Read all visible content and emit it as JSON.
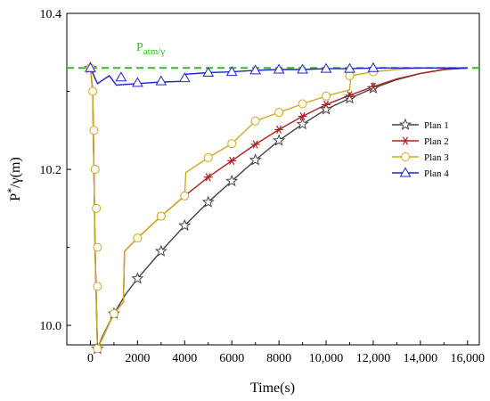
{
  "chart_data": {
    "type": "line",
    "title": "",
    "xlabel": "Time(s)",
    "ylabel": "P*/γ(m)",
    "xlim": [
      -1000,
      16500
    ],
    "ylim": [
      9.975,
      10.4
    ],
    "x_ticks": [
      {
        "value": 0,
        "label": "0"
      },
      {
        "value": 2000,
        "label": "2000"
      },
      {
        "value": 4000,
        "label": "4000"
      },
      {
        "value": 6000,
        "label": "6000"
      },
      {
        "value": 8000,
        "label": "8000"
      },
      {
        "value": 10000,
        "label": "10,000"
      },
      {
        "value": 12000,
        "label": "12,000"
      },
      {
        "value": 14000,
        "label": "14,000"
      },
      {
        "value": 16000,
        "label": "16,000"
      }
    ],
    "y_ticks": [
      {
        "value": 10.0,
        "label": "10.0"
      },
      {
        "value": 10.2,
        "label": "10.2"
      },
      {
        "value": 10.4,
        "label": "10.4"
      }
    ],
    "grid": false,
    "legend_position": "right",
    "reference_line": {
      "y": 10.33,
      "label": "P",
      "label_sub": "atm/γ",
      "color": "#33bb22"
    },
    "series": [
      {
        "name": "Plan 1",
        "color": "#444444",
        "marker": "star",
        "line": [
          [
            0,
            10.33
          ],
          [
            100,
            10.3
          ],
          [
            200,
            10.1
          ],
          [
            300,
            9.97
          ],
          [
            500,
            9.985
          ],
          [
            1000,
            10.015
          ],
          [
            1500,
            10.04
          ],
          [
            2000,
            10.06
          ],
          [
            3000,
            10.095
          ],
          [
            4000,
            10.128
          ],
          [
            5000,
            10.158
          ],
          [
            6000,
            10.185
          ],
          [
            7000,
            10.212
          ],
          [
            8000,
            10.237
          ],
          [
            9000,
            10.258
          ],
          [
            10000,
            10.277
          ],
          [
            11000,
            10.291
          ],
          [
            12000,
            10.304
          ],
          [
            13000,
            10.315
          ],
          [
            14000,
            10.323
          ],
          [
            15000,
            10.328
          ],
          [
            16000,
            10.33
          ]
        ],
        "markers": [
          [
            0,
            10.33
          ],
          [
            300,
            9.97
          ],
          [
            1000,
            10.015
          ],
          [
            2000,
            10.06
          ],
          [
            3000,
            10.095
          ],
          [
            4000,
            10.128
          ],
          [
            5000,
            10.158
          ],
          [
            6000,
            10.185
          ],
          [
            7000,
            10.212
          ],
          [
            8000,
            10.237
          ],
          [
            9000,
            10.258
          ],
          [
            10000,
            10.277
          ],
          [
            11000,
            10.291
          ],
          [
            12000,
            10.304
          ]
        ]
      },
      {
        "name": "Plan 2",
        "color": "#aa2222",
        "marker": "asterisk",
        "line": [
          [
            0,
            10.33
          ],
          [
            100,
            10.3
          ],
          [
            200,
            10.1
          ],
          [
            300,
            9.97
          ],
          [
            1000,
            10.015
          ],
          [
            1400,
            10.03
          ],
          [
            1450,
            10.095
          ],
          [
            2000,
            10.112
          ],
          [
            3000,
            10.14
          ],
          [
            4000,
            10.166
          ],
          [
            5000,
            10.19
          ],
          [
            6000,
            10.211
          ],
          [
            7000,
            10.232
          ],
          [
            8000,
            10.251
          ],
          [
            9000,
            10.268
          ],
          [
            10000,
            10.283
          ],
          [
            11000,
            10.295
          ],
          [
            12000,
            10.306
          ],
          [
            13000,
            10.316
          ],
          [
            14000,
            10.323
          ],
          [
            15000,
            10.328
          ],
          [
            16000,
            10.33
          ]
        ],
        "markers": [
          [
            0,
            10.33
          ],
          [
            300,
            9.97
          ],
          [
            1000,
            10.015
          ],
          [
            2000,
            10.112
          ],
          [
            3000,
            10.14
          ],
          [
            4000,
            10.166
          ],
          [
            5000,
            10.19
          ],
          [
            6000,
            10.211
          ],
          [
            7000,
            10.232
          ],
          [
            8000,
            10.251
          ],
          [
            9000,
            10.268
          ],
          [
            10000,
            10.283
          ],
          [
            11000,
            10.295
          ],
          [
            12000,
            10.306
          ]
        ]
      },
      {
        "name": "Plan 3",
        "color": "#ccaa22",
        "marker": "circle",
        "line": [
          [
            0,
            10.33
          ],
          [
            100,
            10.3
          ],
          [
            200,
            10.1
          ],
          [
            300,
            9.97
          ],
          [
            1000,
            10.015
          ],
          [
            1400,
            10.03
          ],
          [
            1450,
            10.095
          ],
          [
            2000,
            10.112
          ],
          [
            3000,
            10.14
          ],
          [
            4000,
            10.166
          ],
          [
            4050,
            10.196
          ],
          [
            5000,
            10.215
          ],
          [
            6000,
            10.233
          ],
          [
            7000,
            10.262
          ],
          [
            8000,
            10.273
          ],
          [
            9000,
            10.284
          ],
          [
            10000,
            10.294
          ],
          [
            11000,
            10.302
          ],
          [
            11050,
            10.32
          ],
          [
            12000,
            10.325
          ],
          [
            13000,
            10.328
          ],
          [
            14000,
            10.33
          ],
          [
            16000,
            10.33
          ]
        ],
        "markers": [
          [
            0,
            10.33
          ],
          [
            100,
            10.3
          ],
          [
            150,
            10.25
          ],
          [
            200,
            10.2
          ],
          [
            250,
            10.15
          ],
          [
            300,
            10.1
          ],
          [
            300,
            10.05
          ],
          [
            300,
            9.97
          ],
          [
            1000,
            10.015
          ],
          [
            2000,
            10.112
          ],
          [
            3000,
            10.14
          ],
          [
            4000,
            10.166
          ],
          [
            5000,
            10.215
          ],
          [
            6000,
            10.233
          ],
          [
            7000,
            10.262
          ],
          [
            8000,
            10.273
          ],
          [
            9000,
            10.284
          ],
          [
            10000,
            10.294
          ],
          [
            11000,
            10.32
          ],
          [
            12000,
            10.325
          ]
        ]
      },
      {
        "name": "Plan 4",
        "color": "#2222cc",
        "marker": "triangle",
        "line": [
          [
            0,
            10.33
          ],
          [
            300,
            10.31
          ],
          [
            800,
            10.32
          ],
          [
            1100,
            10.308
          ],
          [
            2000,
            10.31
          ],
          [
            3000,
            10.312
          ],
          [
            4000,
            10.313
          ],
          [
            4050,
            10.322
          ],
          [
            5000,
            10.324
          ],
          [
            6000,
            10.325
          ],
          [
            7000,
            10.327
          ],
          [
            8000,
            10.328
          ],
          [
            9000,
            10.328
          ],
          [
            10000,
            10.329
          ],
          [
            11000,
            10.329
          ],
          [
            12000,
            10.33
          ],
          [
            16000,
            10.33
          ]
        ],
        "markers": [
          [
            0,
            10.33
          ],
          [
            1300,
            10.318
          ],
          [
            2000,
            10.311
          ],
          [
            3000,
            10.313
          ],
          [
            4000,
            10.317
          ],
          [
            5000,
            10.324
          ],
          [
            6000,
            10.325
          ],
          [
            7000,
            10.327
          ],
          [
            8000,
            10.328
          ],
          [
            9000,
            10.328
          ],
          [
            10000,
            10.329
          ],
          [
            11000,
            10.329
          ],
          [
            12000,
            10.33
          ]
        ]
      }
    ]
  }
}
